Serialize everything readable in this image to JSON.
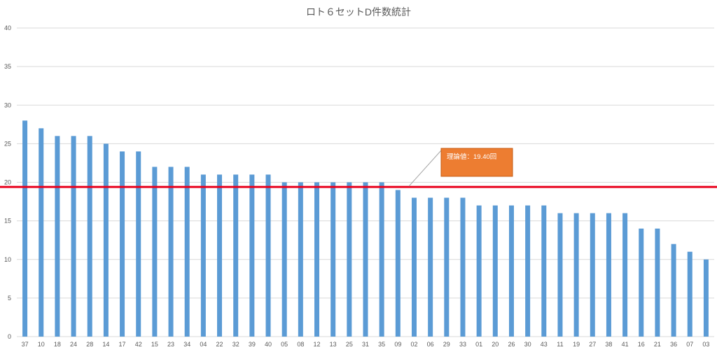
{
  "chart_data": {
    "type": "bar",
    "title": "ロト６セットD件数統計",
    "xlabel": "",
    "ylabel": "",
    "ylim": [
      0,
      40
    ],
    "yticks": [
      0,
      5,
      10,
      15,
      20,
      25,
      30,
      35,
      40
    ],
    "grid": true,
    "categories": [
      "37",
      "10",
      "18",
      "24",
      "28",
      "14",
      "17",
      "42",
      "15",
      "23",
      "34",
      "04",
      "22",
      "32",
      "39",
      "40",
      "05",
      "08",
      "12",
      "13",
      "25",
      "31",
      "35",
      "09",
      "02",
      "06",
      "29",
      "33",
      "01",
      "20",
      "26",
      "30",
      "43",
      "11",
      "19",
      "27",
      "38",
      "41",
      "16",
      "21",
      "36",
      "07",
      "03"
    ],
    "values": [
      28,
      27,
      26,
      26,
      26,
      25,
      24,
      24,
      22,
      22,
      22,
      21,
      21,
      21,
      21,
      21,
      20,
      20,
      20,
      20,
      20,
      20,
      20,
      19,
      18,
      18,
      18,
      18,
      17,
      17,
      17,
      17,
      17,
      16,
      16,
      16,
      16,
      16,
      14,
      14,
      12,
      11,
      10
    ],
    "colors": {
      "bar": "#5b9bd5",
      "reference_line": "#e8001c",
      "callout": "#ed7d31"
    },
    "reference_line": {
      "value": 19.4,
      "label": "理論値：19.40回"
    }
  }
}
